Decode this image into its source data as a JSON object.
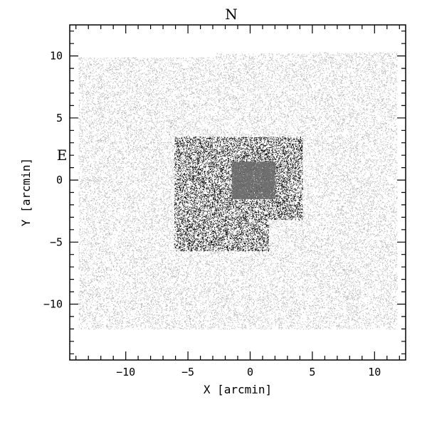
{
  "chart_data": {
    "type": "scatter",
    "title": "",
    "xlabel": "X [arcmin]",
    "ylabel": "Y [arcmin]",
    "xlim": [
      -14.5,
      12.5
    ],
    "ylim": [
      -14.5,
      12.5
    ],
    "xticks": [
      -10,
      -5,
      0,
      5,
      10
    ],
    "yticks": [
      -10,
      -5,
      0,
      5,
      10
    ],
    "x_tick_labels": [
      "−10",
      "−5",
      "0",
      "5",
      "10"
    ],
    "y_tick_labels": [
      "−10",
      "−5",
      "0",
      "5",
      "10"
    ],
    "minor_tick_step": 1,
    "compass": {
      "north": "N",
      "east": "E"
    },
    "grid": false,
    "series": [
      {
        "color": "#b4b4b4",
        "regions": [
          {
            "x": [
              -13.8,
              -2.8
            ],
            "y": [
              -12.0,
              9.9
            ]
          },
          {
            "x": [
              -2.8,
              4.5
            ],
            "y": [
              -12.0,
              10.2
            ]
          },
          {
            "x": [
              4.5,
              11.8
            ],
            "y": [
              -12.0,
              10.3
            ]
          }
        ],
        "approx_points": 30000
      },
      {
        "color": "#000000",
        "regions": [
          {
            "x": [
              -6.1,
              4.2
            ],
            "y": [
              -3.2,
              3.5
            ]
          },
          {
            "x": [
              -6.1,
              1.5
            ],
            "y": [
              -5.7,
              -3.2
            ]
          }
        ],
        "approx_points": 9000
      },
      {
        "color": "#6e6e6e",
        "regions": [
          {
            "x": [
              -1.5,
              2.0
            ],
            "y": [
              -1.5,
              1.5
            ]
          }
        ],
        "approx_points": 8000
      }
    ]
  }
}
